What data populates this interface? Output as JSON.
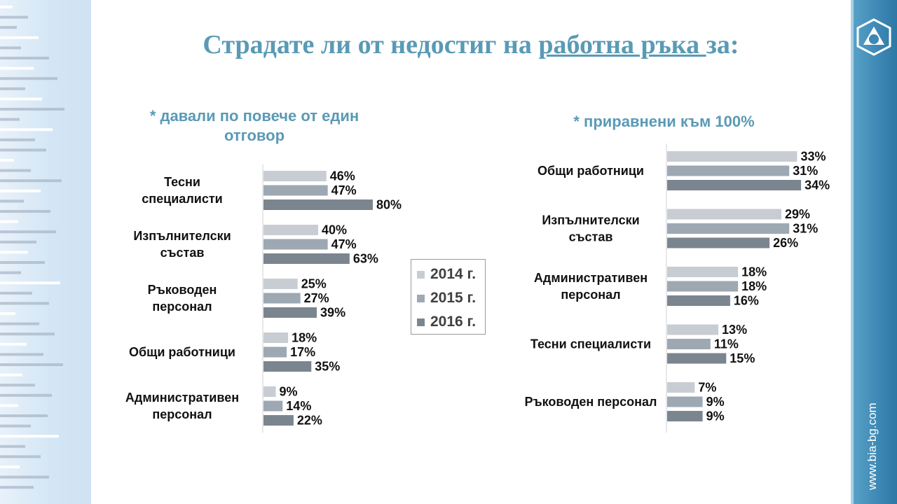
{
  "page": {
    "title_pre": "Страдате ли от недостиг на ",
    "title_underlined": "работна ръка ",
    "title_post": "за:",
    "site": "www.bia-bg.com"
  },
  "legend": [
    {
      "label": "2014 г.",
      "color": "#c8cdd3"
    },
    {
      "label": "2015 г.",
      "color": "#9da8b3"
    },
    {
      "label": "2016 г.",
      "color": "#7b8590"
    }
  ],
  "chart_data": [
    {
      "type": "bar",
      "orientation": "horizontal",
      "title_lines": [
        "* давали по повече от един",
        "отговор"
      ],
      "categories": [
        [
          "Тесни",
          "специалисти"
        ],
        [
          "Изпълнителски",
          "състав"
        ],
        [
          "Ръководен",
          "персонал"
        ],
        [
          "Общи работници"
        ],
        [
          "Административен",
          "персонал"
        ]
      ],
      "series": [
        {
          "name": "2014 г.",
          "values": [
            46,
            40,
            25,
            18,
            9
          ]
        },
        {
          "name": "2015 г.",
          "values": [
            47,
            47,
            27,
            17,
            14
          ]
        },
        {
          "name": "2016 г.",
          "values": [
            80,
            63,
            39,
            35,
            22
          ]
        }
      ],
      "value_suffix": "%",
      "grid": false
    },
    {
      "type": "bar",
      "orientation": "horizontal",
      "title_lines": [
        "* приравнени към 100%"
      ],
      "categories": [
        [
          "Общи работници"
        ],
        [
          "Изпълнителски",
          "състав"
        ],
        [
          "Административен",
          "персонал"
        ],
        [
          "Тесни специалисти"
        ],
        [
          "Ръководен персонал"
        ]
      ],
      "series": [
        {
          "name": "2014 г.",
          "values": [
            33,
            29,
            18,
            13,
            7
          ]
        },
        {
          "name": "2015 г.",
          "values": [
            31,
            31,
            18,
            11,
            9
          ]
        },
        {
          "name": "2016 г.",
          "values": [
            34,
            26,
            16,
            15,
            9
          ]
        }
      ],
      "value_suffix": "%",
      "grid": false
    }
  ]
}
